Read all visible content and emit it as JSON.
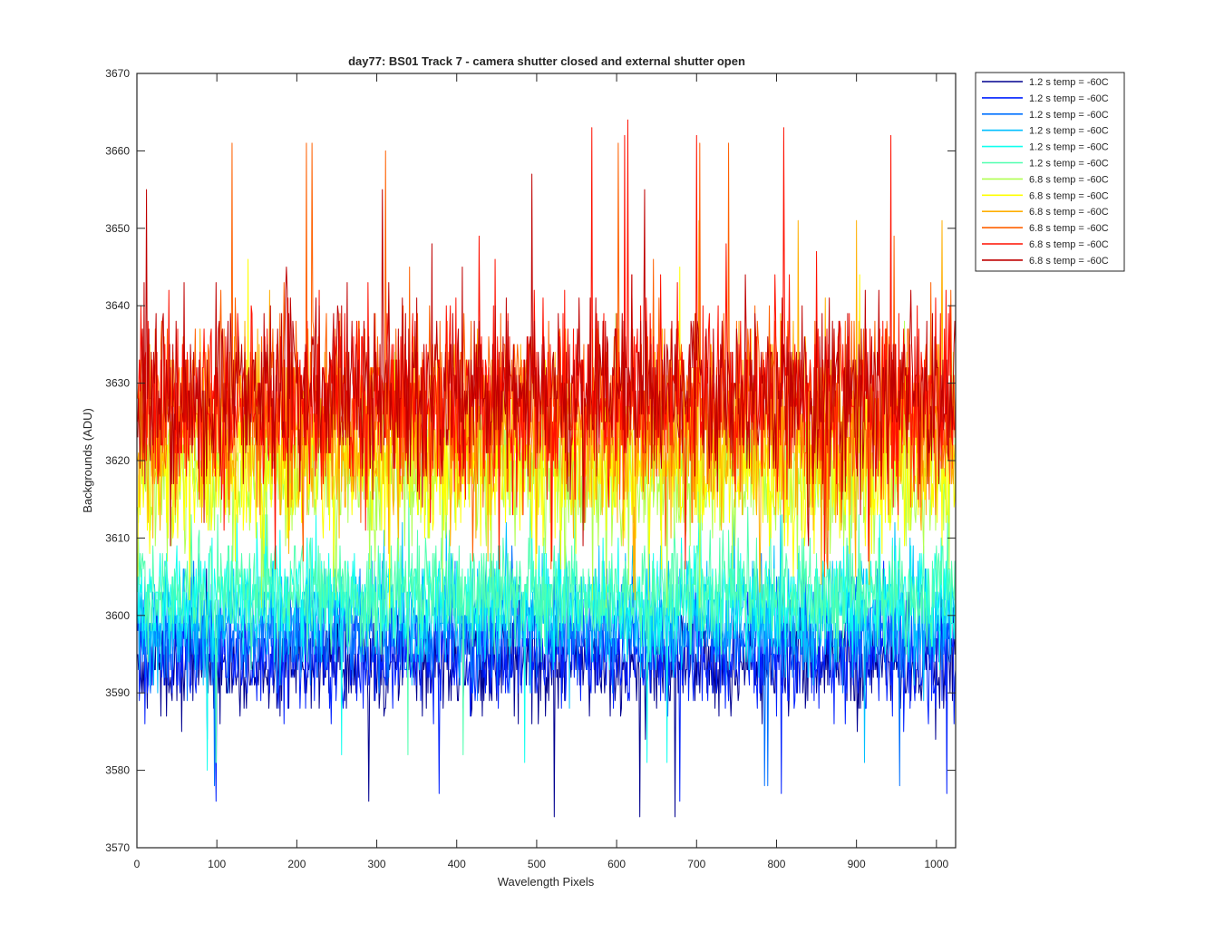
{
  "chart_data": {
    "type": "line",
    "title": "day77: BS01  Track 7 - camera shutter closed and external shutter open",
    "xlabel": "Wavelength Pixels",
    "ylabel": "Backgrounds (ADU)",
    "xlim": [
      0,
      1024
    ],
    "ylim": [
      3570,
      3670
    ],
    "xticks": [
      0,
      100,
      200,
      300,
      400,
      500,
      600,
      700,
      800,
      900,
      1000
    ],
    "yticks": [
      3570,
      3580,
      3590,
      3600,
      3610,
      3620,
      3630,
      3640,
      3650,
      3660,
      3670
    ],
    "grid": false,
    "legend_position": "outside-top-right",
    "x": {
      "start": 1,
      "end": 1024,
      "step": 1
    },
    "series": [
      {
        "name": "1.2 s temp = -60C",
        "color": "#00008f",
        "mean": 3594,
        "min": 3574,
        "max": 3606
      },
      {
        "name": "1.2 s temp = -60C",
        "color": "#0020ff",
        "mean": 3595,
        "min": 3575,
        "max": 3608
      },
      {
        "name": "1.2 s temp = -60C",
        "color": "#0070ff",
        "mean": 3598,
        "min": 3577,
        "max": 3610
      },
      {
        "name": "1.2 s temp = -60C",
        "color": "#00bfff",
        "mean": 3600,
        "min": 3579,
        "max": 3613
      },
      {
        "name": "1.2 s temp = -60C",
        "color": "#10ffef",
        "mean": 3602,
        "min": 3580,
        "max": 3614
      },
      {
        "name": "1.2 s temp = -60C",
        "color": "#50ffaf",
        "mean": 3603,
        "min": 3581,
        "max": 3616
      },
      {
        "name": "6.8 s temp = -60C",
        "color": "#afff50",
        "mean": 3618,
        "min": 3600,
        "max": 3640
      },
      {
        "name": "6.8 s temp = -60C",
        "color": "#ffff00",
        "mean": 3619,
        "min": 3600,
        "max": 3646
      },
      {
        "name": "6.8 s temp = -60C",
        "color": "#ffaf00",
        "mean": 3624,
        "min": 3602,
        "max": 3652
      },
      {
        "name": "6.8 s temp = -60C",
        "color": "#ff6000",
        "mean": 3627,
        "min": 3605,
        "max": 3662
      },
      {
        "name": "6.8 s temp = -60C",
        "color": "#ff1000",
        "mean": 3628,
        "min": 3606,
        "max": 3664
      },
      {
        "name": "6.8 s temp = -60C",
        "color": "#bf0000",
        "mean": 3629,
        "min": 3608,
        "max": 3657
      }
    ]
  }
}
